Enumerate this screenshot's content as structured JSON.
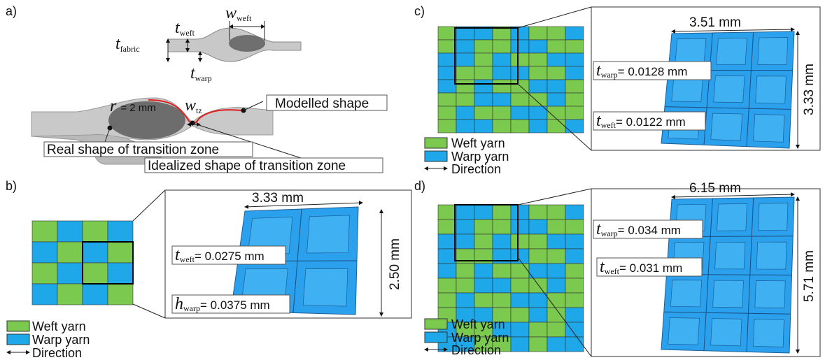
{
  "panels": [
    {
      "label": "a)",
      "dimensions": [
        {
          "symbol": "t",
          "subscript": "fabric"
        },
        {
          "symbol": "t",
          "subscript": "weft"
        },
        {
          "symbol": "w",
          "subscript": "weft"
        },
        {
          "symbol": "t",
          "subscript": "warp"
        },
        {
          "symbol": "w",
          "subscript": "tz"
        }
      ],
      "radius": {
        "symbol": "r",
        "text": "= 2 mm"
      },
      "callouts": [
        "Modelled shape",
        "Real shape of transition zone",
        "Idealized shape of transition zone"
      ]
    },
    {
      "label": "b)",
      "width": "3.33 mm",
      "height": "2.50 mm",
      "thicknesses": [
        {
          "symbol": "t",
          "subscript": "weft",
          "value": "= 0.0275 mm"
        },
        {
          "symbol": "h",
          "subscript": "warp",
          "value": "= 0.0375 mm"
        }
      ],
      "legend": [
        "Weft yarn",
        "Warp yarn",
        "Direction"
      ]
    },
    {
      "label": "c)",
      "width": "3.51 mm",
      "height": "3.33 mm",
      "thicknesses": [
        {
          "symbol": "t",
          "subscript": "warp",
          "value": "= 0.0128 mm"
        },
        {
          "symbol": "t",
          "subscript": "weft",
          "value": "= 0.0122 mm"
        }
      ],
      "legend": [
        "Weft yarn",
        "Warp yarn",
        "Direction"
      ]
    },
    {
      "label": "d)",
      "width": "6.15 mm",
      "height": "5.71 mm",
      "thicknesses": [
        {
          "symbol": "t",
          "subscript": "warp",
          "value": "= 0.034 mm"
        },
        {
          "symbol": "t",
          "subscript": "weft",
          "value": "= 0.031 mm"
        }
      ],
      "legend": [
        "Weft yarn",
        "Warp yarn",
        "Direction"
      ]
    }
  ]
}
